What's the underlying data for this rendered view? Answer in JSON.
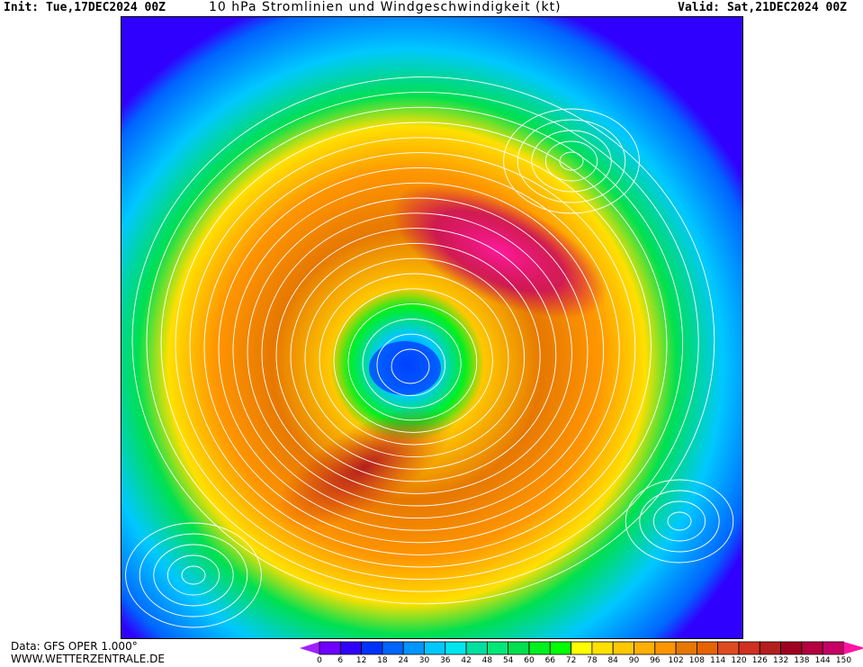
{
  "header": {
    "init": "Init: Tue,17DEC2024 00Z",
    "title": "10 hPa Stromlinien und Windgeschwindigkeit (kt)",
    "valid": "Valid: Sat,21DEC2024 00Z"
  },
  "footer": {
    "data_source": "Data: GFS OPER 1.000°",
    "website": "WWW.WETTERZENTRALE.DE"
  },
  "colorbar": {
    "unit": "kt",
    "ticks": [
      "0",
      "6",
      "12",
      "18",
      "24",
      "30",
      "36",
      "42",
      "48",
      "54",
      "60",
      "66",
      "72",
      "78",
      "84",
      "90",
      "96",
      "102",
      "108",
      "114",
      "120",
      "126",
      "132",
      "138",
      "144",
      "150"
    ],
    "colors": [
      "#7000ff",
      "#3000ff",
      "#0032ff",
      "#0064ff",
      "#0096ff",
      "#00c8ff",
      "#00e6f0",
      "#00e0a0",
      "#00e878",
      "#00e050",
      "#00f020",
      "#00ff00",
      "#ffff00",
      "#ffe000",
      "#ffc800",
      "#ffb000",
      "#ff9600",
      "#e67800",
      "#e66400",
      "#e04a20",
      "#d03020",
      "#b41e1e",
      "#a00020",
      "#b40040",
      "#c80064"
    ],
    "under_color": "#a020ff",
    "over_color": "#ff14a0"
  },
  "map": {
    "projection": "north polar stereographic",
    "field": "wind speed with streamlines",
    "level": "10 hPa"
  }
}
